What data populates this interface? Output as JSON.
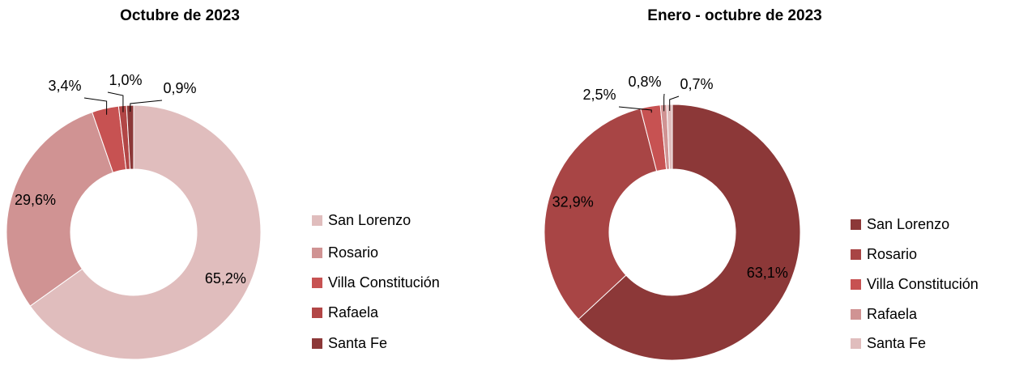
{
  "chart_data": [
    {
      "type": "pie",
      "title": "Octubre de 2023",
      "categories": [
        "San Lorenzo",
        "Rosario",
        "Villa Constitución",
        "Rafaela",
        "Santa Fe"
      ],
      "values": [
        65.2,
        29.6,
        3.4,
        1.0,
        0.9
      ],
      "value_labels": [
        "65,2%",
        "29,6%",
        "3,4%",
        "1,0%",
        "0,9%"
      ],
      "colors": [
        "#e0bdbd",
        "#d09393",
        "#c75252",
        "#b24646",
        "#8c3838"
      ]
    },
    {
      "type": "pie",
      "title": "Enero - octubre de 2023",
      "categories": [
        "San Lorenzo",
        "Rosario",
        "Villa Constitución",
        "Rafaela",
        "Santa Fe"
      ],
      "values": [
        63.1,
        32.9,
        2.5,
        0.8,
        0.7
      ],
      "value_labels": [
        "63,1%",
        "32,9%",
        "2,5%",
        "0,8%",
        "0,7%"
      ],
      "colors": [
        "#8c3838",
        "#a84545",
        "#c75252",
        "#d09393",
        "#e0bdbd"
      ]
    }
  ]
}
